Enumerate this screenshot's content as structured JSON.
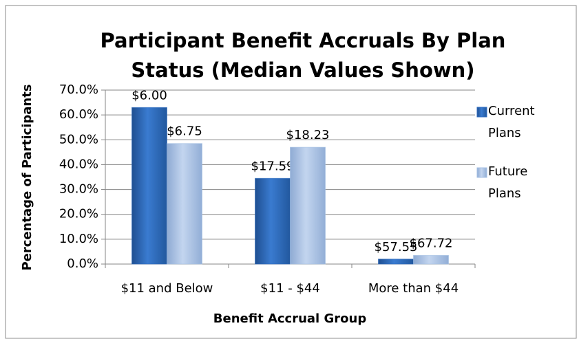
{
  "chart_data": {
    "type": "bar",
    "title": "Participant Benefit Accruals By Plan Status (Median Values Shown)",
    "x_label": "Benefit Accrual Group",
    "y_label": "Percentage of Participants",
    "categories": [
      "$11 and Below",
      "$11 - $44",
      "More than $44"
    ],
    "series": [
      {
        "name": "Current Plans",
        "color": "#2f6cc0",
        "values": [
          63,
          34.5,
          2
        ],
        "annotations": [
          "$6.00",
          "$17.59",
          "$57.55"
        ]
      },
      {
        "name": "Future Plans",
        "color": "#a4bfe3",
        "values": [
          48.5,
          47,
          3.5
        ],
        "annotations": [
          "$6.75",
          "$18.23",
          "$67.72"
        ]
      }
    ],
    "ylim": [
      0,
      70
    ],
    "yticks": [
      {
        "value": 0,
        "label": "0.0%"
      },
      {
        "value": 10,
        "label": "10.0%"
      },
      {
        "value": 20,
        "label": "20.0%"
      },
      {
        "value": 30,
        "label": "30.0%"
      },
      {
        "value": 40,
        "label": "40.0%"
      },
      {
        "value": 50,
        "label": "50.0%"
      },
      {
        "value": 60,
        "label": "60.0%"
      },
      {
        "value": 70,
        "label": "70.0%"
      }
    ],
    "grid": true,
    "legend": "right"
  }
}
